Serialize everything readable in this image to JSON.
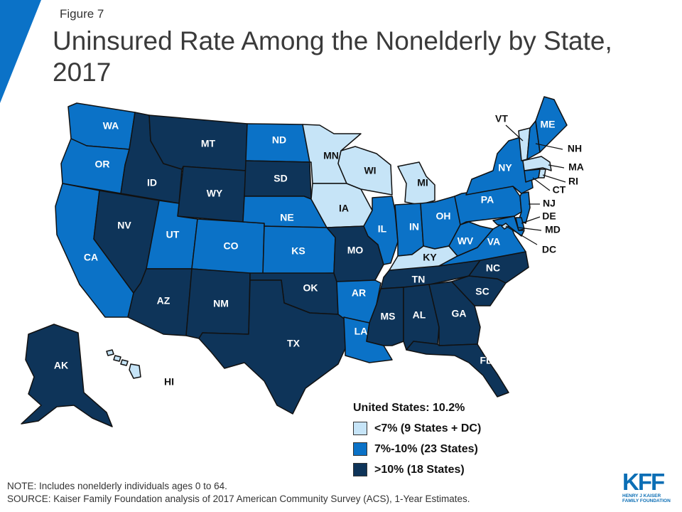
{
  "figure_label": "Figure 7",
  "title": "Uninsured Rate Among the Nonelderly by State, 2017",
  "colors": {
    "low": "#c6e4f7",
    "mid": "#0b72c7",
    "high": "#0e3459",
    "border": "#111111",
    "accent": "#0b72c7"
  },
  "legend": {
    "title": "United States: 10.2%",
    "items": [
      {
        "key": "low",
        "label": "<7% (9 States + DC)"
      },
      {
        "key": "mid",
        "label": "7%-10% (23 States)"
      },
      {
        "key": "high",
        "label": ">10% (18 States)"
      }
    ]
  },
  "states": {
    "WA": {
      "label": "WA",
      "cat": "mid"
    },
    "OR": {
      "label": "OR",
      "cat": "mid"
    },
    "CA": {
      "label": "CA",
      "cat": "mid"
    },
    "ID": {
      "label": "ID",
      "cat": "high"
    },
    "NV": {
      "label": "NV",
      "cat": "high"
    },
    "MT": {
      "label": "MT",
      "cat": "high"
    },
    "WY": {
      "label": "WY",
      "cat": "high"
    },
    "UT": {
      "label": "UT",
      "cat": "mid"
    },
    "AZ": {
      "label": "AZ",
      "cat": "high"
    },
    "CO": {
      "label": "CO",
      "cat": "mid"
    },
    "NM": {
      "label": "NM",
      "cat": "high"
    },
    "ND": {
      "label": "ND",
      "cat": "mid"
    },
    "SD": {
      "label": "SD",
      "cat": "high"
    },
    "NE": {
      "label": "NE",
      "cat": "mid"
    },
    "KS": {
      "label": "KS",
      "cat": "mid"
    },
    "OK": {
      "label": "OK",
      "cat": "high"
    },
    "TX": {
      "label": "TX",
      "cat": "high"
    },
    "MN": {
      "label": "MN",
      "cat": "low"
    },
    "IA": {
      "label": "IA",
      "cat": "low"
    },
    "MO": {
      "label": "MO",
      "cat": "high"
    },
    "AR": {
      "label": "AR",
      "cat": "mid"
    },
    "LA": {
      "label": "LA",
      "cat": "mid"
    },
    "WI": {
      "label": "WI",
      "cat": "low"
    },
    "IL": {
      "label": "IL",
      "cat": "mid"
    },
    "MI": {
      "label": "MI",
      "cat": "low"
    },
    "IN": {
      "label": "IN",
      "cat": "mid"
    },
    "OH": {
      "label": "OH",
      "cat": "mid"
    },
    "KY": {
      "label": "KY",
      "cat": "low"
    },
    "TN": {
      "label": "TN",
      "cat": "high"
    },
    "MS": {
      "label": "MS",
      "cat": "high"
    },
    "AL": {
      "label": "AL",
      "cat": "high"
    },
    "GA": {
      "label": "GA",
      "cat": "high"
    },
    "FL": {
      "label": "FL",
      "cat": "high"
    },
    "SC": {
      "label": "SC",
      "cat": "high"
    },
    "NC": {
      "label": "NC",
      "cat": "high"
    },
    "VA": {
      "label": "VA",
      "cat": "mid"
    },
    "WV": {
      "label": "WV",
      "cat": "mid"
    },
    "PA": {
      "label": "PA",
      "cat": "mid"
    },
    "NY": {
      "label": "NY",
      "cat": "mid"
    },
    "VT": {
      "label": "VT",
      "cat": "low"
    },
    "NH": {
      "label": "NH",
      "cat": "mid"
    },
    "ME": {
      "label": "ME",
      "cat": "mid"
    },
    "MA": {
      "label": "MA",
      "cat": "low"
    },
    "RI": {
      "label": "RI",
      "cat": "low"
    },
    "CT": {
      "label": "CT",
      "cat": "mid"
    },
    "NJ": {
      "label": "NJ",
      "cat": "mid"
    },
    "DE": {
      "label": "DE",
      "cat": "mid"
    },
    "MD": {
      "label": "MD",
      "cat": "mid"
    },
    "DC": {
      "label": "DC",
      "cat": "low"
    },
    "AK": {
      "label": "AK",
      "cat": "high"
    },
    "HI": {
      "label": "HI",
      "cat": "low"
    }
  },
  "note": "NOTE: Includes nonelderly individuals ages 0 to 64.",
  "source": "SOURCE: Kaiser Family Foundation analysis of 2017 American Community Survey (ACS), 1-Year Estimates.",
  "logo": {
    "main": "KFF",
    "sub_line1": "HENRY J KAISER",
    "sub_line2": "FAMILY FOUNDATION"
  }
}
